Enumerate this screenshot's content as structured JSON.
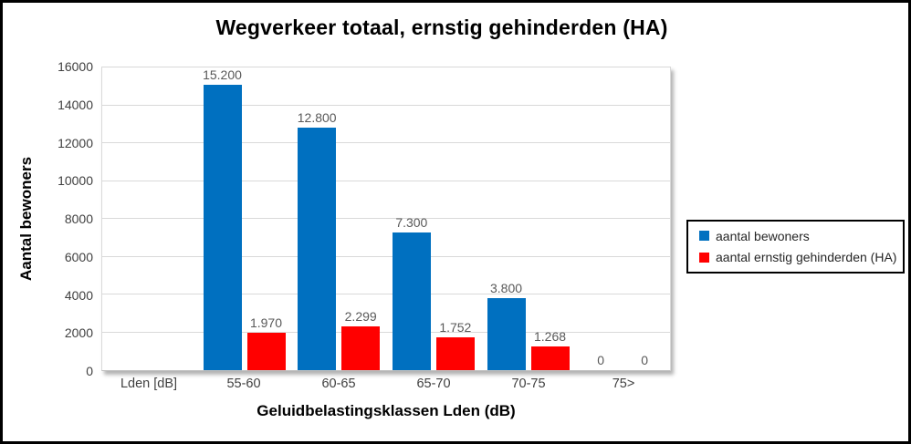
{
  "chart_data": {
    "type": "bar",
    "title": "Wegverkeer totaal, ernstig gehinderden (HA)",
    "xlabel": "Geluidbelastingsklassen Lden (dB)",
    "ylabel": "Aantal bewoners",
    "categories": [
      "Lden [dB]",
      "55-60",
      "60-65",
      "65-70",
      "70-75",
      "75>"
    ],
    "series": [
      {
        "name": "aantal bewoners",
        "color": "#0070C0",
        "values": [
          null,
          15200,
          12800,
          7300,
          3800,
          0
        ],
        "labels": [
          "",
          "15.200",
          "12.800",
          "7.300",
          "3.800",
          "0"
        ]
      },
      {
        "name": "aantal ernstig gehinderden (HA)",
        "color": "#FF0000",
        "values": [
          null,
          1970,
          2299,
          1752,
          1268,
          0
        ],
        "labels": [
          "",
          "1.970",
          "2.299",
          "1.752",
          "1.268",
          "0"
        ]
      }
    ],
    "ylim": [
      0,
      16000
    ],
    "ytick_step": 2000,
    "grid": true,
    "grid_color": "#D9D9D9",
    "legend_position": "right",
    "legend_entries": [
      "aantal bewoners",
      "aantal ernstig gehinderden (HA)"
    ]
  }
}
